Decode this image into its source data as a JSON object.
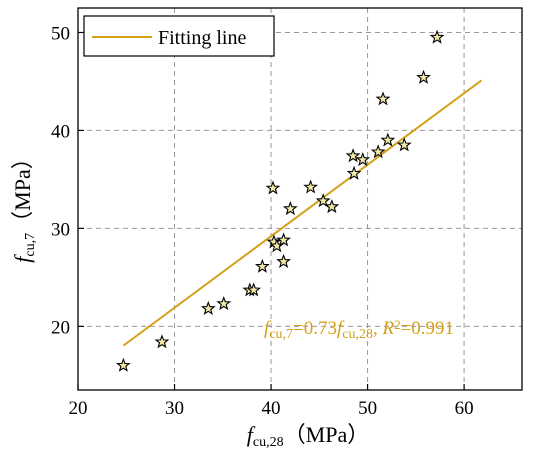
{
  "chart_data": {
    "type": "scatter",
    "xlim": [
      20,
      66
    ],
    "ylim": [
      13.5,
      52.5
    ],
    "xticks": [
      20,
      30,
      40,
      50,
      60
    ],
    "yticks": [
      20,
      30,
      40,
      50
    ],
    "grid": true,
    "legend_position": "top-left",
    "x_label": {
      "main": "f",
      "sub": "cu,28",
      "unit": "（MPa）"
    },
    "y_label": {
      "main": "f",
      "sub": "cu,7",
      "unit": "（MPa）"
    },
    "series": [
      {
        "marker": "star",
        "marker_fill": "#f3e9a6",
        "points": [
          [
            24.7,
            16.0
          ],
          [
            28.7,
            18.4
          ],
          [
            33.5,
            21.8
          ],
          [
            35.1,
            22.3
          ],
          [
            37.8,
            23.7
          ],
          [
            38.2,
            23.7
          ],
          [
            39.1,
            26.1
          ],
          [
            40.2,
            34.1
          ],
          [
            40.3,
            28.6
          ],
          [
            40.6,
            28.2
          ],
          [
            41.3,
            28.8
          ],
          [
            41.3,
            26.6
          ],
          [
            42.0,
            32.0
          ],
          [
            44.1,
            34.2
          ],
          [
            45.4,
            32.8
          ],
          [
            46.3,
            32.2
          ],
          [
            48.5,
            37.4
          ],
          [
            48.6,
            35.6
          ],
          [
            49.5,
            37.0
          ],
          [
            51.1,
            37.8
          ],
          [
            51.6,
            43.2
          ],
          [
            52.1,
            39.0
          ],
          [
            53.8,
            38.5
          ],
          [
            55.8,
            45.4
          ],
          [
            57.2,
            49.5
          ]
        ]
      },
      {
        "name": "Fitting line",
        "type": "line",
        "color": "#d4a017",
        "points": [
          [
            24.7,
            18.03
          ],
          [
            61.8,
            45.11
          ]
        ]
      }
    ],
    "annotation": {
      "color": "#d4a017",
      "parts": [
        {
          "t": "f",
          "style": "italic"
        },
        {
          "t": "cu,7",
          "style": "sub"
        },
        {
          "t": "=0.73",
          "style": "normal"
        },
        {
          "t": "f",
          "style": "italic"
        },
        {
          "t": "cu,28",
          "style": "sub"
        },
        {
          "t": ", ",
          "style": "normal"
        },
        {
          "t": "R",
          "style": "italic"
        },
        {
          "t": "2",
          "style": "sup"
        },
        {
          "t": "=0.991",
          "style": "normal"
        }
      ]
    }
  }
}
